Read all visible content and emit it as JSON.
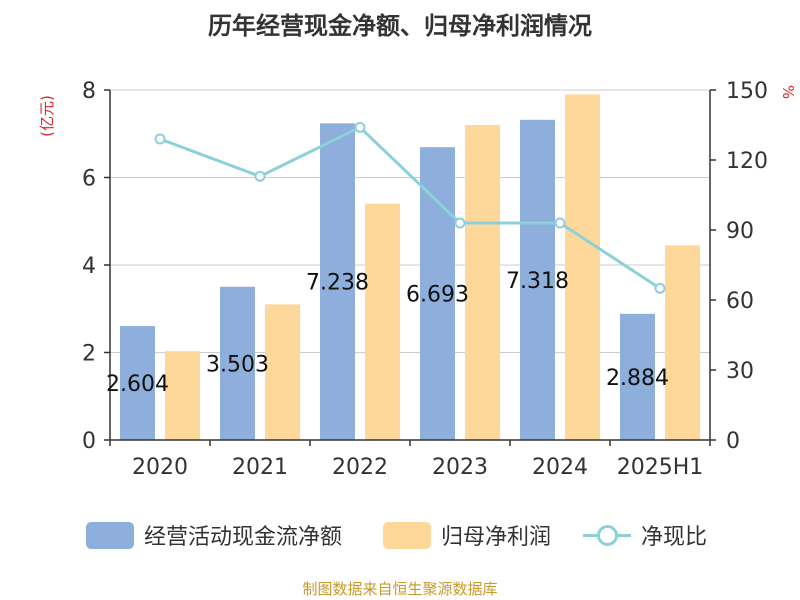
{
  "colors": {
    "cash_flow_bar": "#8eaedb",
    "net_profit_bar": "#fdd89a",
    "ratio_line": "#8dd0d9",
    "unit_label": "#d9262b",
    "title": "#333333",
    "source": "#c79a2a"
  },
  "chart_data": {
    "type": "bar",
    "title": "历年经营现金净额、归母净利润情况",
    "categories": [
      "2020",
      "2021",
      "2022",
      "2023",
      "2024",
      "2025H1"
    ],
    "y_left": {
      "unit_label": "(亿元)",
      "ylim": [
        0,
        8
      ],
      "ticks": [
        "0",
        "2",
        "4",
        "6",
        "8"
      ]
    },
    "y_right": {
      "unit_label": "%",
      "ylim": [
        0,
        150
      ],
      "ticks": [
        "0",
        "30",
        "60",
        "90",
        "120",
        "150"
      ]
    },
    "series": [
      {
        "name": "经营活动现金流净额",
        "type": "bar",
        "axis": "left",
        "values": [
          2.604,
          3.503,
          7.238,
          6.693,
          7.318,
          2.884
        ],
        "data_labels": [
          "2.604",
          "3.503",
          "7.238",
          "6.693",
          "7.318",
          "2.884"
        ]
      },
      {
        "name": "归母净利润",
        "type": "bar",
        "axis": "left",
        "values": [
          2.03,
          3.1,
          5.4,
          7.2,
          7.9,
          4.45
        ]
      },
      {
        "name": "净现比",
        "type": "line",
        "axis": "right",
        "values": [
          129,
          113,
          134,
          93,
          93,
          65
        ]
      }
    ],
    "grid": true,
    "legend_position": "bottom"
  },
  "source": "制图数据来自恒生聚源数据库"
}
